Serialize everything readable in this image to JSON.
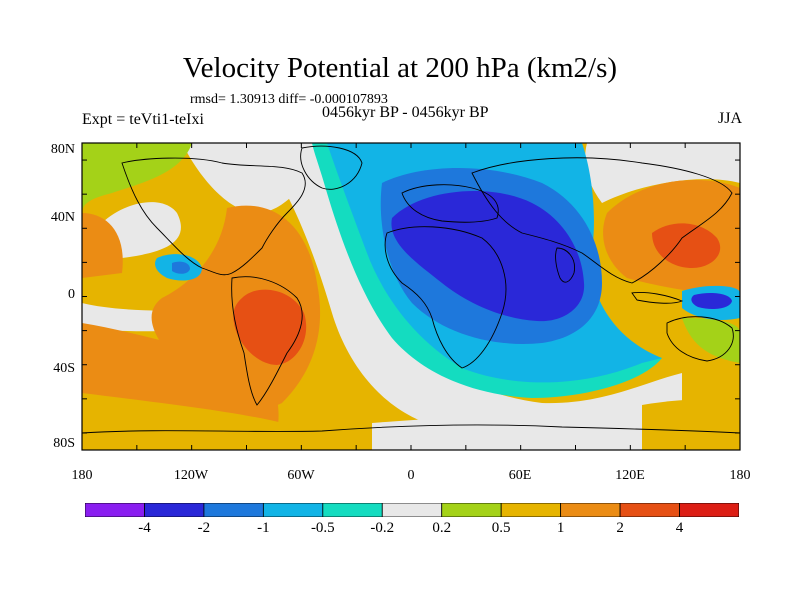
{
  "header": {
    "title": "Velocity Potential at 200 hPa (km2/s)",
    "stats": "rmsd= 1.30913 diff= -0.000107893",
    "left_label": "Expt = teVti1-teIxi",
    "center_label": "0456kyr BP - 0456kyr BP",
    "right_label": "JJA"
  },
  "axes": {
    "y_ticks": [
      "80N",
      "40N",
      "0",
      "40S",
      "80S"
    ],
    "x_ticks": [
      "180",
      "120W",
      "60W",
      "0",
      "60E",
      "120E",
      "180"
    ]
  },
  "colorbar": {
    "colors": [
      "#8a1ef0",
      "#2a28d8",
      "#1e78dc",
      "#12b4e6",
      "#14dcc0",
      "#e8e8e8",
      "#a4d218",
      "#e6b400",
      "#eb8c14",
      "#e65014",
      "#dc1e14"
    ],
    "labels": [
      "-4",
      "-2",
      "-1",
      "-0.5",
      "-0.2",
      "0.2",
      "0.5",
      "1",
      "2",
      "4"
    ]
  },
  "map_data": {
    "type": "filled_contour",
    "projection": "cylindrical_equidistant",
    "lon_range": [
      -180,
      180
    ],
    "lat_range": [
      -90,
      90
    ],
    "features": [
      {
        "sign": "negative",
        "level": "< -2",
        "region": "North Africa / Arabia / Middle East",
        "color": "#2a28d8"
      },
      {
        "sign": "negative",
        "level": "-2 to -1",
        "region": "Atlantic-Africa-Indian Ocean broad trough",
        "color": "#1e78dc"
      },
      {
        "sign": "negative",
        "level": "-1 to -0.2",
        "region": "central Atlantic to Indian Ocean",
        "color": "#12b4e6"
      },
      {
        "sign": "negative",
        "level": "-1",
        "region": "tropical western Pacific east of New Guinea",
        "color": "#1e78dc"
      },
      {
        "sign": "positive",
        "level": "> 2",
        "region": "South America / eastern South Pacific",
        "color": "#e65014"
      },
      {
        "sign": "positive",
        "level": "1 to 2",
        "region": "East Asia / western North Pacific",
        "color": "#eb8c14"
      },
      {
        "sign": "positive",
        "level": "0.5 to 1",
        "region": "South Pacific and Antarctic margin",
        "color": "#e6b400"
      }
    ]
  }
}
